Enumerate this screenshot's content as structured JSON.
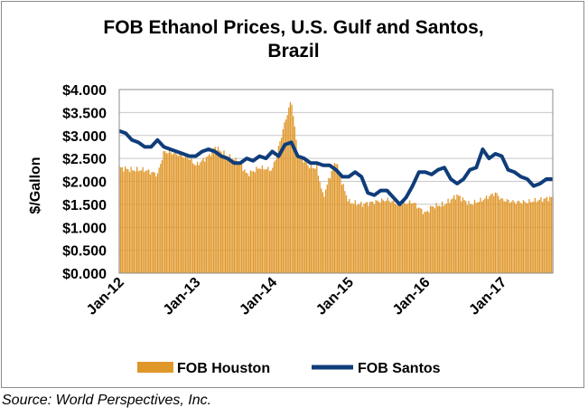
{
  "source": "Source: World Perspectives, Inc.",
  "colors": {
    "houston": "#e0972a",
    "santos": "#0f3d7a",
    "grid": "#c8c8c8",
    "plot_border": "#8c8c8c"
  },
  "chart_data": {
    "type": "bar+line",
    "title": "FOB Ethanol Prices, U.S. Gulf and Santos, Brazil",
    "ylabel": "$/Gallon",
    "xlabel": "",
    "ylim": [
      0,
      4
    ],
    "yticks": [
      0,
      0.5,
      1.0,
      1.5,
      2.0,
      2.5,
      3.0,
      3.5,
      4.0
    ],
    "ytick_labels": [
      "$0.000",
      "$0.500",
      "$1.000",
      "$1.500",
      "$2.000",
      "$2.500",
      "$3.000",
      "$3.500",
      "$4.000"
    ],
    "xlim": [
      "2012-01",
      "2017-09"
    ],
    "xtick_labels": [
      "Jan-12",
      "Jan-13",
      "Jan-14",
      "Jan-15",
      "Jan-16",
      "Jan-17"
    ],
    "grid": "horizontal",
    "legend_position": "bottom",
    "series": [
      {
        "name": "FOB Houston",
        "type": "bar",
        "frequency": "weekly (keypoints shown, linearly interpolated)",
        "keypoints": [
          [
            "2012-01",
            2.3
          ],
          [
            "2012-03",
            2.25
          ],
          [
            "2012-05",
            2.25
          ],
          [
            "2012-07",
            2.15
          ],
          [
            "2012-08",
            2.65
          ],
          [
            "2012-10",
            2.6
          ],
          [
            "2012-12",
            2.5
          ],
          [
            "2013-01",
            2.35
          ],
          [
            "2013-03",
            2.55
          ],
          [
            "2013-04",
            2.75
          ],
          [
            "2013-06",
            2.55
          ],
          [
            "2013-08",
            2.4
          ],
          [
            "2013-09",
            2.15
          ],
          [
            "2013-11",
            2.3
          ],
          [
            "2014-01",
            2.25
          ],
          [
            "2014-02",
            2.75
          ],
          [
            "2014-03",
            3.3
          ],
          [
            "2014-04",
            3.78
          ],
          [
            "2014-05",
            2.6
          ],
          [
            "2014-06",
            2.45
          ],
          [
            "2014-07",
            2.3
          ],
          [
            "2014-08",
            2.3
          ],
          [
            "2014-09",
            1.65
          ],
          [
            "2014-10",
            2.1
          ],
          [
            "2014-11",
            2.45
          ],
          [
            "2014-12",
            1.95
          ],
          [
            "2015-01",
            1.55
          ],
          [
            "2015-03",
            1.5
          ],
          [
            "2015-05",
            1.55
          ],
          [
            "2015-07",
            1.6
          ],
          [
            "2015-09",
            1.5
          ],
          [
            "2015-11",
            1.55
          ],
          [
            "2016-01",
            1.3
          ],
          [
            "2016-02",
            1.45
          ],
          [
            "2016-04",
            1.5
          ],
          [
            "2016-06",
            1.7
          ],
          [
            "2016-08",
            1.5
          ],
          [
            "2016-10",
            1.6
          ],
          [
            "2016-12",
            1.75
          ],
          [
            "2017-01",
            1.6
          ],
          [
            "2017-03",
            1.55
          ],
          [
            "2017-05",
            1.55
          ],
          [
            "2017-07",
            1.6
          ],
          [
            "2017-09",
            1.65
          ]
        ]
      },
      {
        "name": "FOB Santos",
        "type": "line",
        "points": [
          [
            "2012-01",
            3.1
          ],
          [
            "2012-02",
            3.05
          ],
          [
            "2012-03",
            2.9
          ],
          [
            "2012-04",
            2.85
          ],
          [
            "2012-05",
            2.75
          ],
          [
            "2012-06",
            2.75
          ],
          [
            "2012-07",
            2.9
          ],
          [
            "2012-08",
            2.75
          ],
          [
            "2012-09",
            2.7
          ],
          [
            "2012-10",
            2.65
          ],
          [
            "2012-11",
            2.6
          ],
          [
            "2012-12",
            2.55
          ],
          [
            "2013-01",
            2.55
          ],
          [
            "2013-02",
            2.65
          ],
          [
            "2013-03",
            2.7
          ],
          [
            "2013-04",
            2.65
          ],
          [
            "2013-05",
            2.55
          ],
          [
            "2013-06",
            2.5
          ],
          [
            "2013-07",
            2.4
          ],
          [
            "2013-08",
            2.4
          ],
          [
            "2013-09",
            2.5
          ],
          [
            "2013-10",
            2.45
          ],
          [
            "2013-11",
            2.55
          ],
          [
            "2013-12",
            2.5
          ],
          [
            "2014-01",
            2.65
          ],
          [
            "2014-02",
            2.55
          ],
          [
            "2014-03",
            2.8
          ],
          [
            "2014-04",
            2.85
          ],
          [
            "2014-05",
            2.55
          ],
          [
            "2014-06",
            2.5
          ],
          [
            "2014-07",
            2.4
          ],
          [
            "2014-08",
            2.4
          ],
          [
            "2014-09",
            2.35
          ],
          [
            "2014-10",
            2.35
          ],
          [
            "2014-11",
            2.25
          ],
          [
            "2014-12",
            2.1
          ],
          [
            "2015-01",
            2.1
          ],
          [
            "2015-02",
            2.2
          ],
          [
            "2015-03",
            2.1
          ],
          [
            "2015-04",
            1.75
          ],
          [
            "2015-05",
            1.7
          ],
          [
            "2015-06",
            1.8
          ],
          [
            "2015-07",
            1.8
          ],
          [
            "2015-08",
            1.65
          ],
          [
            "2015-09",
            1.5
          ],
          [
            "2015-10",
            1.65
          ],
          [
            "2015-11",
            1.9
          ],
          [
            "2015-12",
            2.2
          ],
          [
            "2016-01",
            2.2
          ],
          [
            "2016-02",
            2.15
          ],
          [
            "2016-03",
            2.25
          ],
          [
            "2016-04",
            2.3
          ],
          [
            "2016-05",
            2.05
          ],
          [
            "2016-06",
            1.95
          ],
          [
            "2016-07",
            2.05
          ],
          [
            "2016-08",
            2.25
          ],
          [
            "2016-09",
            2.3
          ],
          [
            "2016-10",
            2.7
          ],
          [
            "2016-11",
            2.5
          ],
          [
            "2016-12",
            2.6
          ],
          [
            "2017-01",
            2.55
          ],
          [
            "2017-02",
            2.25
          ],
          [
            "2017-03",
            2.2
          ],
          [
            "2017-04",
            2.1
          ],
          [
            "2017-05",
            2.05
          ],
          [
            "2017-06",
            1.9
          ],
          [
            "2017-07",
            1.95
          ],
          [
            "2017-08",
            2.05
          ],
          [
            "2017-09",
            2.05
          ]
        ]
      }
    ]
  }
}
